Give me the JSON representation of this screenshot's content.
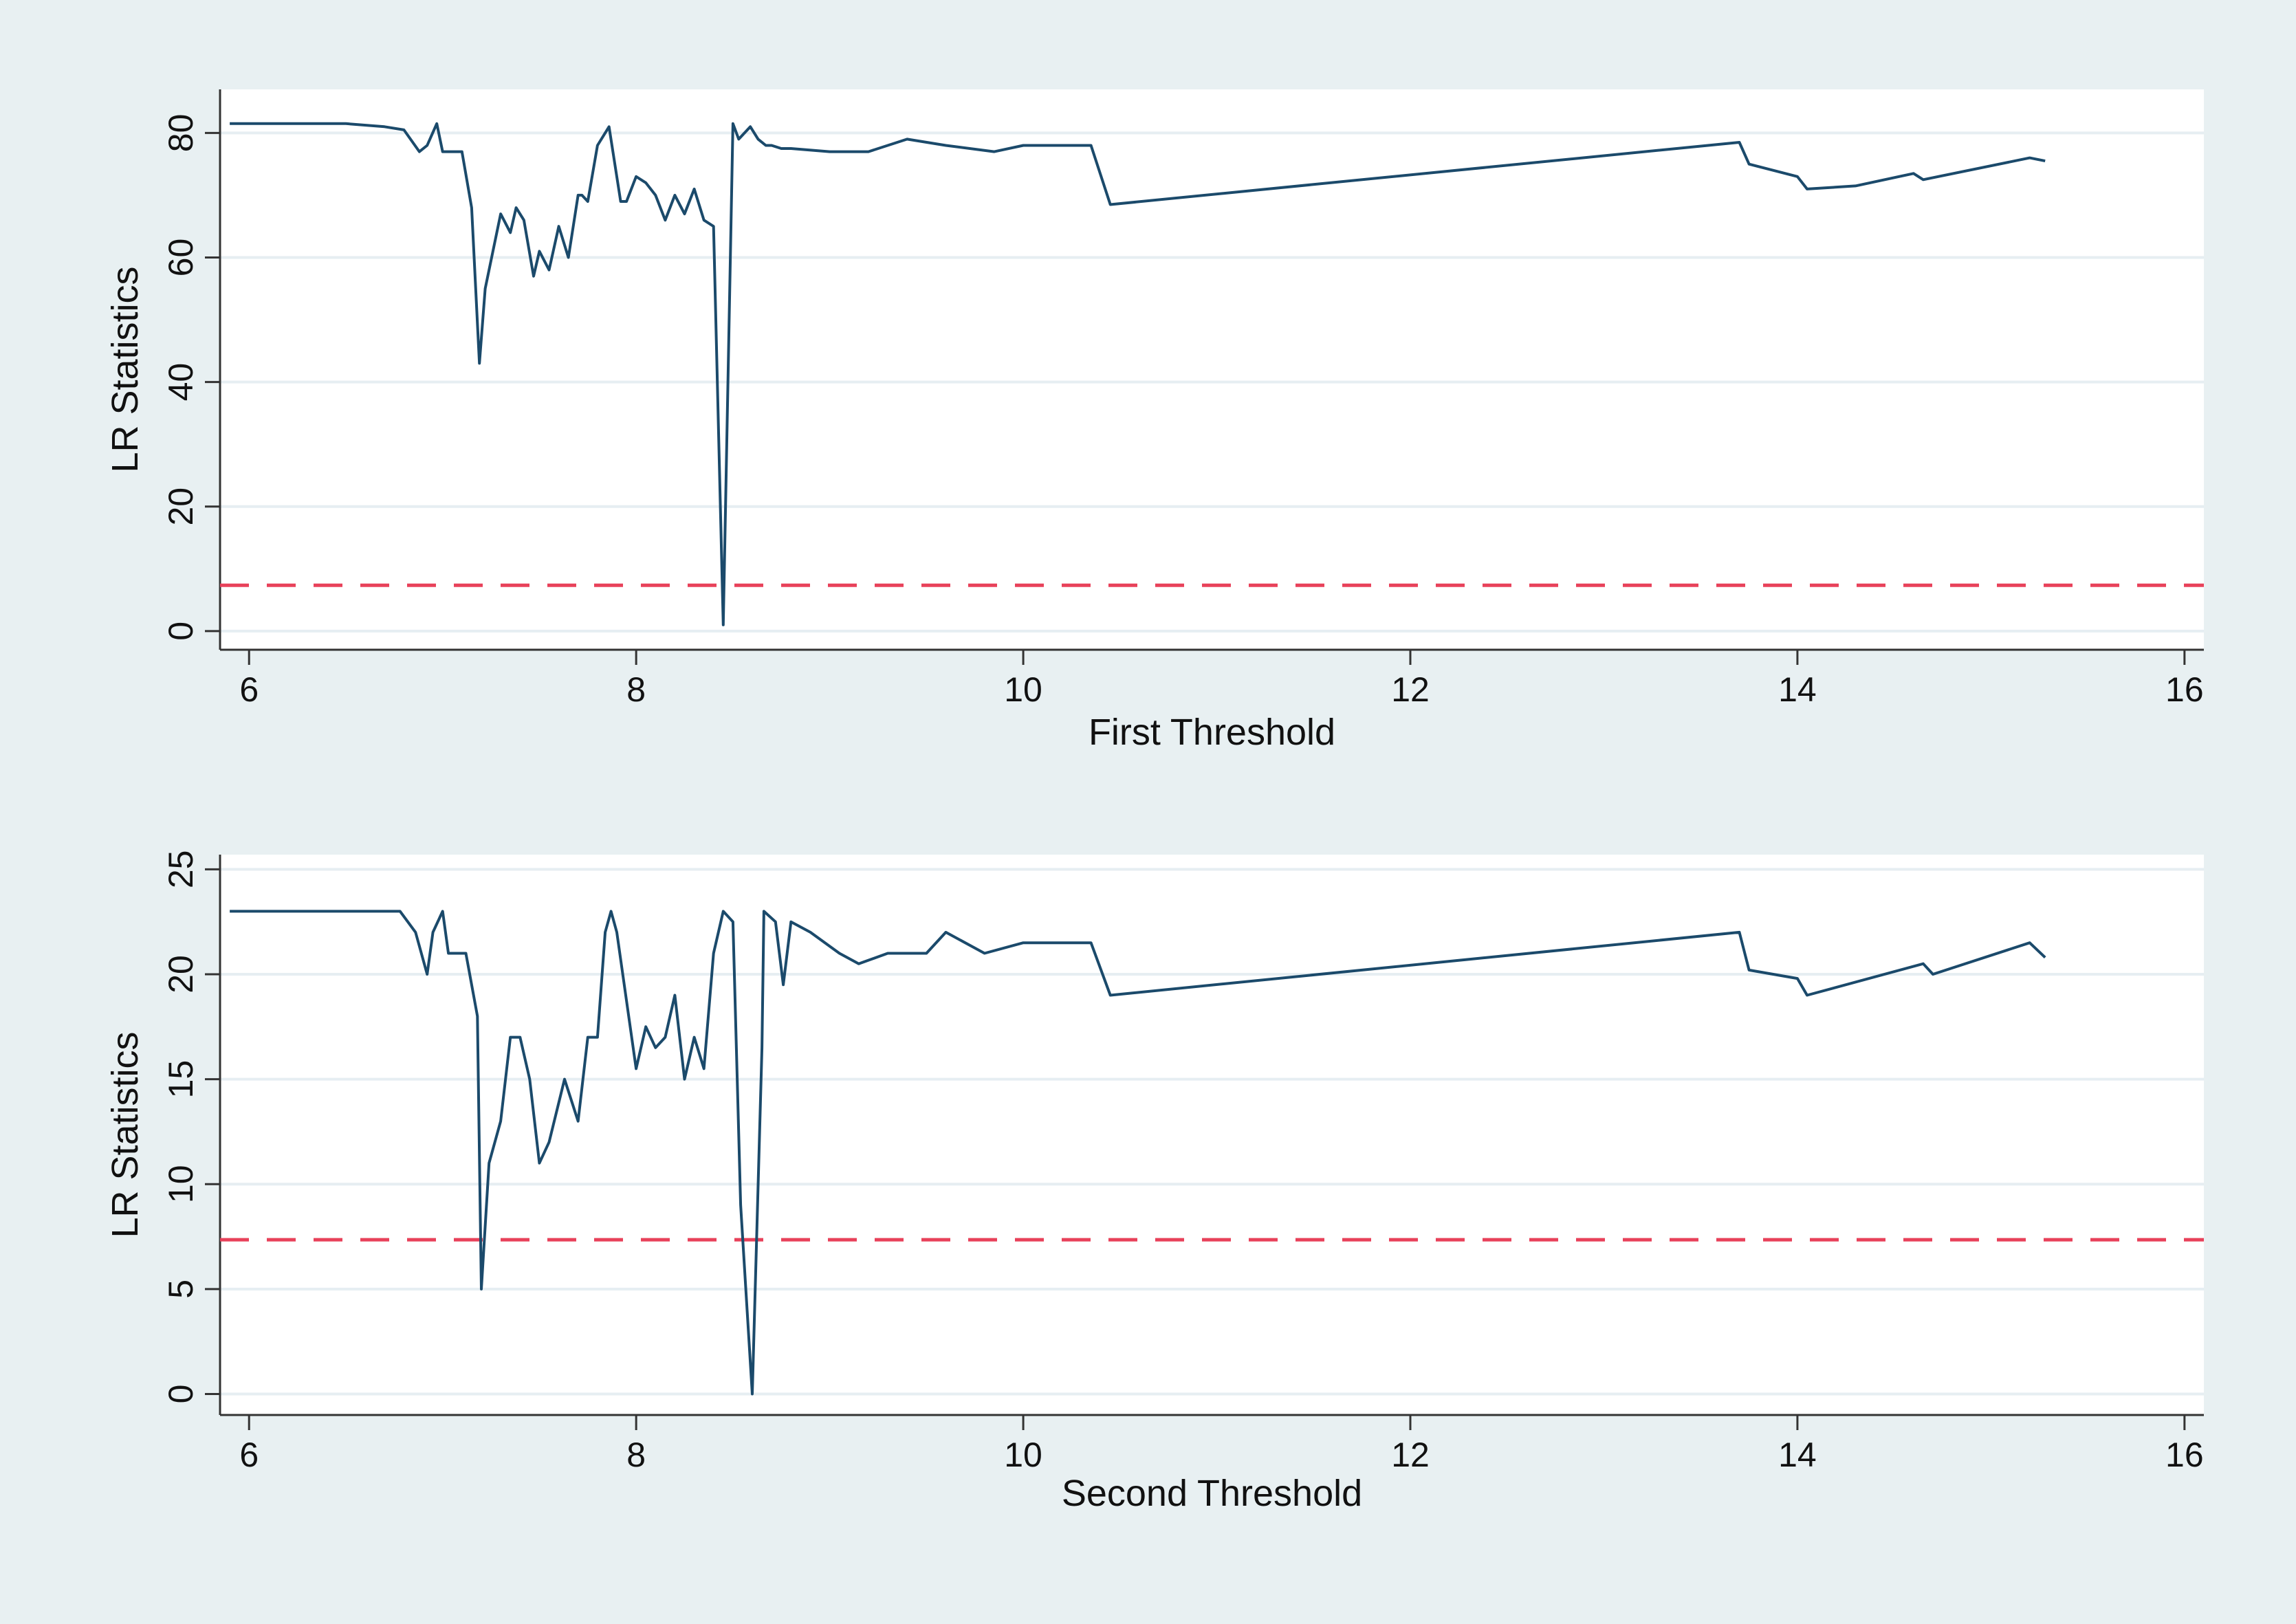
{
  "colors": {
    "outer_background": "#e8f0f2",
    "plot_background": "#ffffff",
    "gridline": "#e6eef2",
    "axis": "#333333",
    "series_line": "#1b4a6b",
    "critical_line": "#e8415a"
  },
  "chart_data": [
    {
      "type": "line",
      "xlabel": "First Threshold",
      "ylabel": "LR Statistics",
      "xlim": [
        5.85,
        16.1
      ],
      "ylim": [
        -3,
        87
      ],
      "xticks": [
        6,
        8,
        10,
        12,
        14,
        16
      ],
      "yticks": [
        0,
        20,
        40,
        60,
        80
      ],
      "grid": true,
      "reference_line": {
        "y": 7.35,
        "style": "dashed"
      },
      "series": [
        {
          "x": [
            5.9,
            6.3,
            6.5,
            6.7,
            6.8,
            6.88,
            6.92,
            6.97,
            7.0,
            7.03,
            7.1,
            7.15,
            7.19,
            7.22,
            7.3,
            7.35,
            7.38,
            7.42,
            7.47,
            7.5,
            7.55,
            7.6,
            7.65,
            7.7,
            7.72,
            7.75,
            7.8,
            7.86,
            7.92,
            7.95,
            8.0,
            8.05,
            8.1,
            8.15,
            8.2,
            8.25,
            8.3,
            8.35,
            8.4,
            8.45,
            8.5,
            8.53,
            8.59,
            8.63,
            8.67,
            8.7,
            8.75,
            8.8,
            9.0,
            9.2,
            9.4,
            9.6,
            9.85,
            10.0,
            10.35,
            10.45,
            13.7,
            13.75,
            14.0,
            14.05,
            14.3,
            14.6,
            14.65,
            15.2,
            15.28
          ],
          "y": [
            81.5,
            81.5,
            81.5,
            81,
            80.5,
            77,
            78,
            81.5,
            77,
            77,
            77,
            68,
            43,
            55,
            67,
            64,
            68,
            66,
            57,
            61,
            58,
            65,
            60,
            70,
            70,
            69,
            78,
            81,
            69,
            69,
            73,
            72,
            70,
            66,
            70,
            67,
            71,
            66,
            65,
            1,
            81.5,
            79,
            81,
            79,
            78,
            78,
            77.5,
            77.5,
            77,
            77,
            79,
            78,
            77,
            78,
            78,
            68.5,
            78.5,
            75,
            73,
            71,
            71.5,
            73.5,
            72.5,
            76,
            75.5
          ]
        }
      ]
    },
    {
      "type": "line",
      "xlabel": "Second Threshold",
      "ylabel": "LR Statistics",
      "xlim": [
        5.85,
        16.1
      ],
      "ylim": [
        -1,
        25.7
      ],
      "xticks": [
        6,
        8,
        10,
        12,
        14,
        16
      ],
      "yticks": [
        0,
        5,
        10,
        15,
        20,
        25
      ],
      "grid": true,
      "reference_line": {
        "y": 7.35,
        "style": "dashed"
      },
      "series": [
        {
          "x": [
            5.9,
            6.4,
            6.78,
            6.86,
            6.92,
            6.95,
            7.0,
            7.03,
            7.12,
            7.18,
            7.2,
            7.24,
            7.3,
            7.35,
            7.4,
            7.45,
            7.5,
            7.55,
            7.63,
            7.7,
            7.75,
            7.8,
            7.84,
            7.87,
            7.9,
            8.0,
            8.05,
            8.1,
            8.15,
            8.2,
            8.25,
            8.3,
            8.35,
            8.4,
            8.45,
            8.5,
            8.54,
            8.6,
            8.65,
            8.66,
            8.72,
            8.76,
            8.8,
            8.9,
            9.05,
            9.15,
            9.3,
            9.5,
            9.6,
            9.8,
            10.0,
            10.35,
            10.45,
            13.7,
            13.75,
            14.0,
            14.05,
            14.65,
            14.7,
            15.2,
            15.28
          ],
          "y": [
            23,
            23,
            23,
            22,
            20,
            22,
            23,
            21,
            21,
            18,
            5,
            11,
            13,
            17,
            17,
            15,
            11,
            12,
            15,
            13,
            17,
            17,
            22,
            23,
            22,
            15.5,
            17.5,
            16.5,
            17,
            19,
            15,
            17,
            15.5,
            21,
            23,
            22.5,
            9,
            0,
            16.5,
            23,
            22.5,
            19.5,
            22.5,
            22,
            21,
            20.5,
            21,
            21,
            22,
            21,
            21.5,
            21.5,
            19,
            22,
            20.2,
            19.8,
            19,
            20.5,
            20,
            21.5,
            20.8
          ]
        }
      ]
    }
  ]
}
